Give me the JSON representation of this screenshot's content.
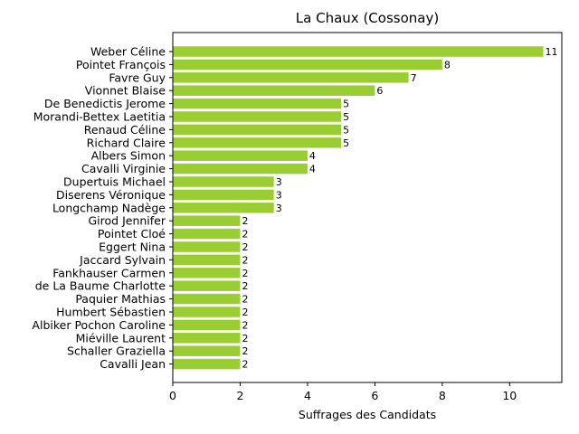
{
  "chart_data": {
    "type": "bar",
    "orientation": "horizontal",
    "title": "La Chaux (Cossonay)",
    "xlabel": "Suffrages des Candidats",
    "ylabel": "",
    "xlim": [
      0,
      11.55
    ],
    "x_ticks": [
      0,
      2,
      4,
      6,
      8,
      10
    ],
    "grid": false,
    "bar_color": "#9acd32",
    "categories": [
      "Weber Céline",
      "Pointet François",
      "Favre Guy",
      "Vionnet Blaise",
      "De Benedictis Jerome",
      "Morandi-Bettex Laetitia",
      "Renaud Céline",
      "Richard Claire",
      "Albers Simon",
      "Cavalli Virginie",
      "Dupertuis Michael",
      "Diserens Véronique",
      "Longchamp Nadège",
      "Girod Jennifer",
      "Pointet Cloé",
      "Eggert Nina",
      "Jaccard Sylvain",
      "Fankhauser Carmen",
      "de La Baume Charlotte",
      "Paquier Mathias",
      "Humbert Sébastien",
      "Albiker Pochon Caroline",
      "Miéville Laurent",
      "Schaller Graziella",
      "Cavalli Jean"
    ],
    "values": [
      11,
      8,
      7,
      6,
      5,
      5,
      5,
      5,
      4,
      4,
      3,
      3,
      3,
      2,
      2,
      2,
      2,
      2,
      2,
      2,
      2,
      2,
      2,
      2,
      2
    ]
  }
}
